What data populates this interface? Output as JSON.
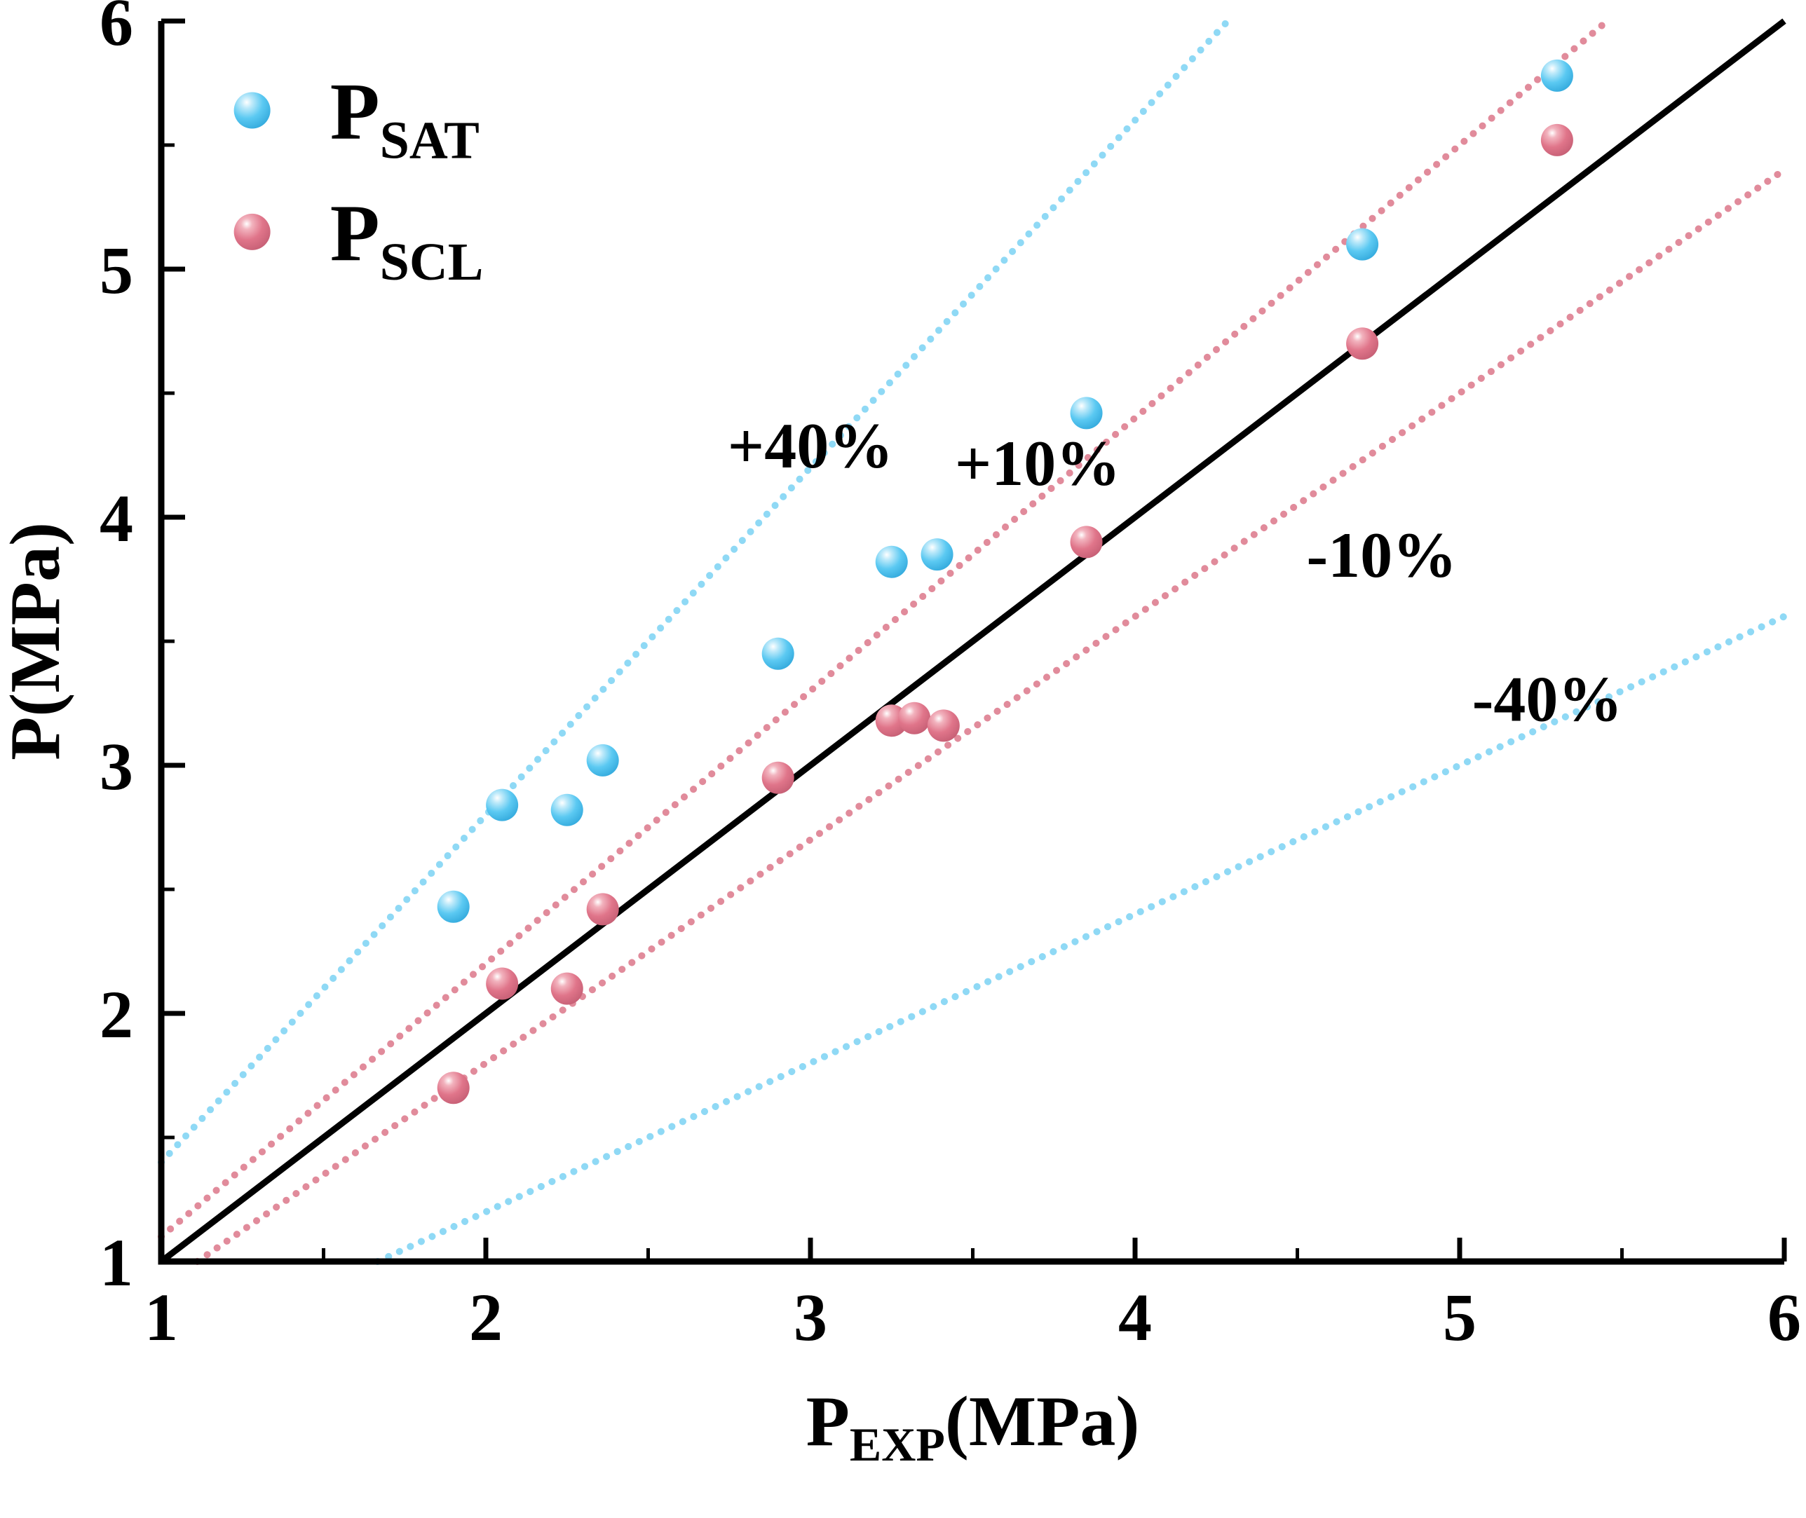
{
  "chart_data": {
    "type": "scatter",
    "title": "",
    "xlabel": {
      "main": "P",
      "sub": "EXP",
      "unit": "(MPa)"
    },
    "ylabel": "P(MPa)",
    "xlim": [
      1,
      6
    ],
    "ylim": [
      1,
      6
    ],
    "xticks": [
      1,
      2,
      3,
      4,
      5,
      6
    ],
    "yticks": [
      1,
      2,
      3,
      4,
      5,
      6
    ],
    "minor_tick_step": 0.5,
    "grid": false,
    "identity_line": {
      "slope": 1,
      "color": "#000000",
      "style": "solid"
    },
    "reference_lines": [
      {
        "label": "+40%",
        "slope": 1.4,
        "color": "#8fd9f5",
        "style": "dotted",
        "label_pos": {
          "x": 3.0,
          "y": 4.2
        }
      },
      {
        "label": "+10%",
        "slope": 1.1,
        "color": "#e18b9b",
        "style": "dotted",
        "label_pos": {
          "x": 3.7,
          "y": 4.13
        }
      },
      {
        "label": "-10%",
        "slope": 0.9,
        "color": "#e18b9b",
        "style": "dotted",
        "label_pos": {
          "x": 4.76,
          "y": 3.76
        }
      },
      {
        "label": "-40%",
        "slope": 0.6,
        "color": "#8fd9f5",
        "style": "dotted",
        "label_pos": {
          "x": 5.27,
          "y": 3.18
        }
      }
    ],
    "series": [
      {
        "name_main": "P",
        "name_sub": "SAT",
        "color": "#5bc9f2",
        "gradient": [
          {
            "offset": "0%",
            "color": "#ffffff"
          },
          {
            "offset": "18%",
            "color": "#bfeafa"
          },
          {
            "offset": "52%",
            "color": "#5bc9f2"
          },
          {
            "offset": "100%",
            "color": "#2ba3d8"
          }
        ],
        "points": [
          [
            1.9,
            2.43
          ],
          [
            2.05,
            2.84
          ],
          [
            2.25,
            2.82
          ],
          [
            2.36,
            3.02
          ],
          [
            2.9,
            3.45
          ],
          [
            3.25,
            3.82
          ],
          [
            3.39,
            3.85
          ],
          [
            3.85,
            4.42
          ],
          [
            4.7,
            5.1
          ],
          [
            5.3,
            5.78
          ]
        ]
      },
      {
        "name_main": "P",
        "name_sub": "SCL",
        "color": "#e0758a",
        "gradient": [
          {
            "offset": "0%",
            "color": "#ffffff"
          },
          {
            "offset": "18%",
            "color": "#f2b3be"
          },
          {
            "offset": "52%",
            "color": "#e0758a"
          },
          {
            "offset": "100%",
            "color": "#c05a70"
          }
        ],
        "points": [
          [
            1.9,
            1.7
          ],
          [
            2.05,
            2.12
          ],
          [
            2.25,
            2.1
          ],
          [
            2.36,
            2.42
          ],
          [
            2.9,
            2.95
          ],
          [
            3.25,
            3.18
          ],
          [
            3.32,
            3.19
          ],
          [
            3.41,
            3.16
          ],
          [
            3.85,
            3.9
          ],
          [
            4.7,
            4.7
          ],
          [
            5.3,
            5.52
          ]
        ]
      }
    ],
    "legend": {
      "position": "top-left",
      "label_x": 1.52,
      "items": [
        {
          "series": 0,
          "x": 1.28,
          "y": 5.64
        },
        {
          "series": 1,
          "x": 1.28,
          "y": 5.15
        }
      ]
    }
  }
}
